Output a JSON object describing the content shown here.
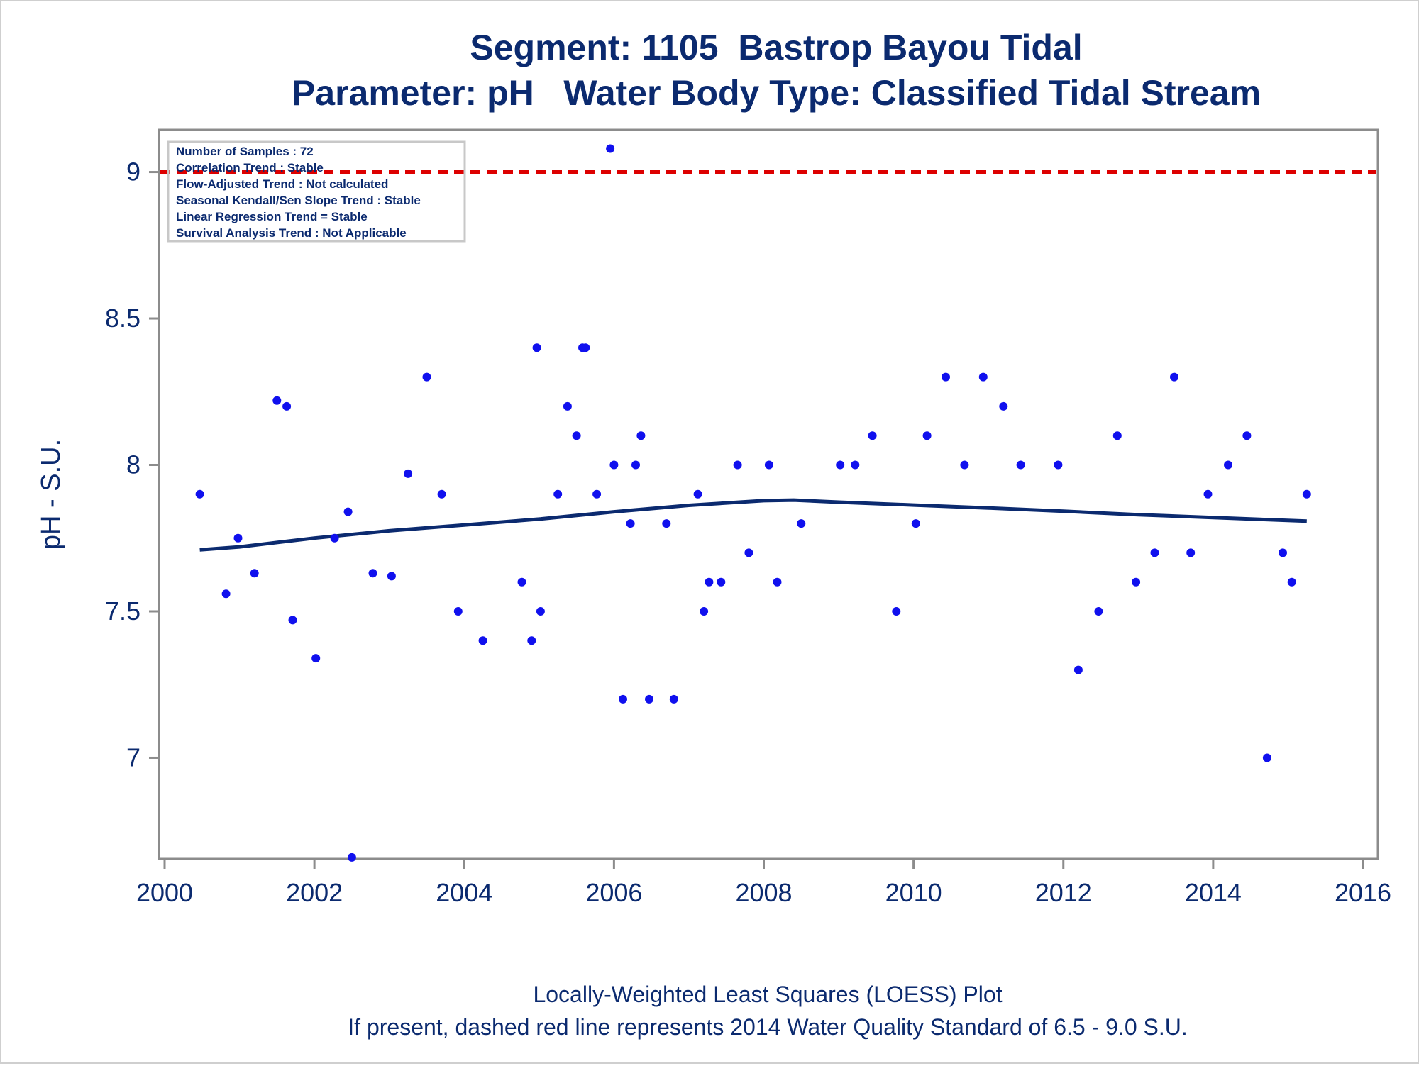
{
  "chart_data": {
    "type": "scatter",
    "title": "Segment: 1105  Bastrop Bayou Tidal",
    "subtitle": "Parameter: pH   Water Body Type: Classified Tidal Stream",
    "xlabel": "",
    "ylabel": "pH - S.U.",
    "xlim": [
      2000,
      2016
    ],
    "ylim": [
      6.65,
      9.12
    ],
    "x_ticks": [
      "2000",
      "2002",
      "2004",
      "2006",
      "2008",
      "2010",
      "2012",
      "2014",
      "2016"
    ],
    "x_tick_values": [
      2000,
      2002,
      2004,
      2006,
      2008,
      2010,
      2012,
      2014,
      2016
    ],
    "y_ticks": [
      "7",
      "7.5",
      "8",
      "8.5",
      "9"
    ],
    "y_tick_values": [
      7,
      7.5,
      8,
      8.5,
      9
    ],
    "grid": false,
    "legend": "none",
    "stats_box": {
      "position": "top-left",
      "lines": [
        "Number of Samples : 72",
        "Correlation Trend : Stable",
        "Flow-Adjusted Trend : Not calculated",
        "Seasonal Kendall/Sen Slope Trend : Stable",
        "Linear Regression Trend = Stable",
        "Survival Analysis Trend : Not Applicable"
      ]
    },
    "reference_line": {
      "y": 9.0,
      "style": "dashed",
      "color": "#dd0000"
    },
    "series": [
      {
        "type": "scatter",
        "color": "#1010ee",
        "points": [
          [
            2000.47,
            7.9
          ],
          [
            2000.82,
            7.56
          ],
          [
            2000.98,
            7.75
          ],
          [
            2001.2,
            7.63
          ],
          [
            2001.5,
            8.22
          ],
          [
            2001.63,
            8.2
          ],
          [
            2001.71,
            7.47
          ],
          [
            2002.02,
            7.34
          ],
          [
            2002.27,
            7.75
          ],
          [
            2002.45,
            7.84
          ],
          [
            2002.5,
            6.66
          ],
          [
            2002.78,
            7.63
          ],
          [
            2003.03,
            7.62
          ],
          [
            2003.25,
            7.97
          ],
          [
            2003.5,
            8.3
          ],
          [
            2003.7,
            7.9
          ],
          [
            2003.92,
            7.5
          ],
          [
            2004.25,
            7.4
          ],
          [
            2004.77,
            7.6
          ],
          [
            2004.9,
            7.4
          ],
          [
            2004.97,
            8.4
          ],
          [
            2005.02,
            7.5
          ],
          [
            2005.25,
            7.9
          ],
          [
            2005.38,
            8.2
          ],
          [
            2005.5,
            8.1
          ],
          [
            2005.58,
            8.4
          ],
          [
            2005.62,
            8.4
          ],
          [
            2005.77,
            7.9
          ],
          [
            2005.95,
            9.08
          ],
          [
            2006.0,
            8.0
          ],
          [
            2006.12,
            7.2
          ],
          [
            2006.22,
            7.8
          ],
          [
            2006.29,
            8.0
          ],
          [
            2006.36,
            8.1
          ],
          [
            2006.47,
            7.2
          ],
          [
            2006.7,
            7.8
          ],
          [
            2006.8,
            7.2
          ],
          [
            2007.12,
            7.9
          ],
          [
            2007.2,
            7.5
          ],
          [
            2007.27,
            7.6
          ],
          [
            2007.43,
            7.6
          ],
          [
            2007.65,
            8.0
          ],
          [
            2007.8,
            7.7
          ],
          [
            2008.07,
            8.0
          ],
          [
            2008.18,
            7.6
          ],
          [
            2008.5,
            7.8
          ],
          [
            2009.02,
            8.0
          ],
          [
            2009.22,
            8.0
          ],
          [
            2009.45,
            8.1
          ],
          [
            2009.77,
            7.5
          ],
          [
            2010.03,
            7.8
          ],
          [
            2010.18,
            8.1
          ],
          [
            2010.43,
            8.3
          ],
          [
            2010.68,
            8.0
          ],
          [
            2010.93,
            8.3
          ],
          [
            2011.2,
            8.2
          ],
          [
            2011.43,
            8.0
          ],
          [
            2011.93,
            8.0
          ],
          [
            2012.2,
            7.3
          ],
          [
            2012.47,
            7.5
          ],
          [
            2012.72,
            8.1
          ],
          [
            2012.97,
            7.6
          ],
          [
            2013.22,
            7.7
          ],
          [
            2013.48,
            8.3
          ],
          [
            2013.7,
            7.7
          ],
          [
            2013.93,
            7.9
          ],
          [
            2014.2,
            8.0
          ],
          [
            2014.45,
            8.1
          ],
          [
            2014.72,
            7.0
          ],
          [
            2014.93,
            7.7
          ],
          [
            2015.05,
            7.6
          ],
          [
            2015.25,
            7.9
          ]
        ]
      },
      {
        "type": "line",
        "description": "LOESS fit",
        "color": "#0b2a6f",
        "points": [
          [
            2000.47,
            7.71
          ],
          [
            2001.0,
            7.72
          ],
          [
            2001.5,
            7.735
          ],
          [
            2002.0,
            7.75
          ],
          [
            2003.0,
            7.775
          ],
          [
            2004.0,
            7.795
          ],
          [
            2005.0,
            7.815
          ],
          [
            2006.0,
            7.84
          ],
          [
            2007.0,
            7.862
          ],
          [
            2008.0,
            7.878
          ],
          [
            2008.4,
            7.88
          ],
          [
            2009.0,
            7.873
          ],
          [
            2010.0,
            7.863
          ],
          [
            2011.0,
            7.853
          ],
          [
            2012.0,
            7.842
          ],
          [
            2013.0,
            7.83
          ],
          [
            2014.0,
            7.82
          ],
          [
            2015.25,
            7.808
          ]
        ]
      }
    ],
    "footnotes": [
      "Locally-Weighted Least Squares (LOESS) Plot",
      "If present, dashed red line represents 2014 Water Quality Standard of 6.5 - 9.0 S.U."
    ]
  }
}
